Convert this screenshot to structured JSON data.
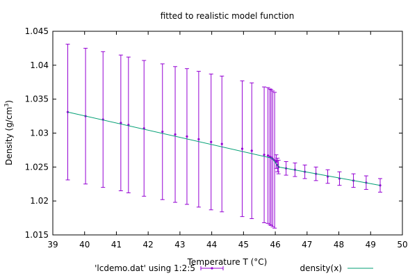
{
  "chart_data": {
    "type": "scatter",
    "title": "fitted to realistic model function",
    "xlabel": "Temperature T (°C)",
    "ylabel": "Density (g/cm³)",
    "ylabel_main": "Density (g/cm",
    "ylabel_sup": "3",
    "ylabel_end": ")",
    "xlim": [
      39,
      50
    ],
    "ylim": [
      1.015,
      1.045
    ],
    "grid": false,
    "legend_position": "bottom",
    "x_tick_values": [
      39,
      40,
      41,
      42,
      43,
      44,
      45,
      46,
      47,
      48,
      49,
      50
    ],
    "x_tick_labels": [
      "39",
      "40",
      "41",
      "42",
      "43",
      "44",
      "45",
      "46",
      "47",
      "48",
      "49",
      "50"
    ],
    "y_tick_values": [
      1.015,
      1.02,
      1.025,
      1.03,
      1.035,
      1.04,
      1.045
    ],
    "y_tick_labels": [
      "1.015",
      "1.02",
      "1.025",
      "1.03",
      "1.035",
      "1.04",
      "1.045"
    ],
    "series": [
      {
        "name": "'lcdemo.dat' using 1:2:5",
        "kind": "errorbars",
        "color": "#9400d3",
        "x": [
          39.47,
          40.03,
          40.58,
          41.14,
          41.38,
          41.87,
          42.45,
          42.85,
          43.22,
          43.59,
          43.98,
          44.32,
          44.96,
          45.26,
          45.65,
          45.77,
          45.83,
          45.87,
          45.92,
          45.98,
          46.03,
          46.07,
          46.1,
          46.34,
          46.62,
          46.93,
          47.28,
          47.65,
          48.02,
          48.46,
          48.86,
          49.3
        ],
        "y": [
          1.0331,
          1.0325,
          1.032,
          1.0315,
          1.0312,
          1.0307,
          1.0302,
          1.0298,
          1.0295,
          1.0291,
          1.0287,
          1.0284,
          1.0277,
          1.0274,
          1.0268,
          1.0267,
          1.0265,
          1.0264,
          1.0262,
          1.026,
          1.0258,
          1.0253,
          1.025,
          1.0248,
          1.0246,
          1.0243,
          1.024,
          1.0236,
          1.0233,
          1.023,
          1.0227,
          1.0223
        ],
        "err": [
          0.01,
          0.01,
          0.01,
          0.01,
          0.01,
          0.01,
          0.01,
          0.01,
          0.01,
          0.01,
          0.01,
          0.01,
          0.01,
          0.01,
          0.01,
          0.01,
          0.01,
          0.01,
          0.01,
          0.01,
          0.001,
          0.001,
          0.001,
          0.001,
          0.001,
          0.001,
          0.001,
          0.001,
          0.001,
          0.001,
          0.001,
          0.001
        ]
      },
      {
        "name": "density(x)",
        "kind": "line",
        "color": "#009e73",
        "x": [
          39.47,
          45.9,
          46.1,
          49.3
        ],
        "y": [
          1.0331,
          1.0263,
          1.025,
          1.0223
        ]
      }
    ]
  }
}
